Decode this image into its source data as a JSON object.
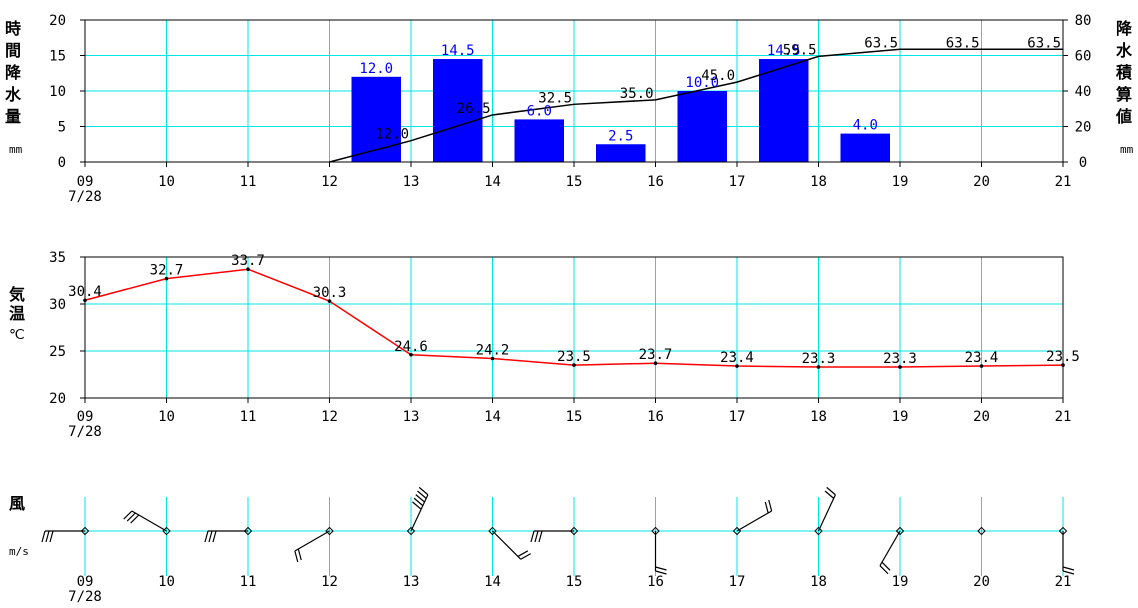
{
  "chart_data": [
    {
      "type": "bar",
      "ylabel": "時間降水量",
      "ylabel_unit": "mm",
      "y2label": "降水積算値",
      "y2label_unit": "mm",
      "ylim": [
        0,
        20
      ],
      "y2lim": [
        0,
        80
      ],
      "yticks": [
        "0",
        "5",
        "10",
        "15",
        "20"
      ],
      "y2ticks": [
        "0",
        "20",
        "40",
        "60",
        "80"
      ],
      "x_labels": [
        "09",
        "10",
        "11",
        "12",
        "13",
        "14",
        "15",
        "16",
        "17",
        "18",
        "19",
        "20",
        "21"
      ],
      "date_label": "7/28",
      "grid": true,
      "bar_color": "#0000ff",
      "bars": [
        {
          "x": 13,
          "value": 12.0,
          "label": "12.0"
        },
        {
          "x": 14,
          "value": 14.5,
          "label": "14.5"
        },
        {
          "x": 15,
          "value": 6.0,
          "label": "6.0"
        },
        {
          "x": 16,
          "value": 2.5,
          "label": "2.5"
        },
        {
          "x": 17,
          "value": 10.0,
          "label": "10.0"
        },
        {
          "x": 18,
          "value": 14.5,
          "label": "14.5"
        },
        {
          "x": 19,
          "value": 4.0,
          "label": "4.0"
        }
      ],
      "cumulative_color": "#000000",
      "cumulative": [
        {
          "x": 12,
          "value": 0,
          "label": ""
        },
        {
          "x": 13,
          "value": 12.0,
          "label": "12.0"
        },
        {
          "x": 14,
          "value": 26.5,
          "label": "26.5"
        },
        {
          "x": 15,
          "value": 32.5,
          "label": "32.5"
        },
        {
          "x": 16,
          "value": 35.0,
          "label": "35.0"
        },
        {
          "x": 17,
          "value": 45.0,
          "label": "45.0"
        },
        {
          "x": 18,
          "value": 59.5,
          "label": "59.5"
        },
        {
          "x": 19,
          "value": 63.5,
          "label": "63.5"
        },
        {
          "x": 20,
          "value": 63.5,
          "label": "63.5"
        },
        {
          "x": 21,
          "value": 63.5,
          "label": "63.5"
        }
      ]
    },
    {
      "type": "line",
      "ylabel": "気温",
      "ylabel_unit": "℃",
      "ylim": [
        20,
        35
      ],
      "yticks": [
        "20",
        "25",
        "30",
        "35"
      ],
      "x_labels": [
        "09",
        "10",
        "11",
        "12",
        "13",
        "14",
        "15",
        "16",
        "17",
        "18",
        "19",
        "20",
        "21"
      ],
      "date_label": "7/28",
      "grid": true,
      "line_color": "#ff0000",
      "points": [
        {
          "x": 9,
          "value": 30.4,
          "label": "30.4"
        },
        {
          "x": 10,
          "value": 32.7,
          "label": "32.7"
        },
        {
          "x": 11,
          "value": 33.7,
          "label": "33.7"
        },
        {
          "x": 12,
          "value": 30.3,
          "label": "30.3"
        },
        {
          "x": 13,
          "value": 24.6,
          "label": "24.6"
        },
        {
          "x": 14,
          "value": 24.2,
          "label": "24.2"
        },
        {
          "x": 15,
          "value": 23.5,
          "label": "23.5"
        },
        {
          "x": 16,
          "value": 23.7,
          "label": "23.7"
        },
        {
          "x": 17,
          "value": 23.4,
          "label": "23.4"
        },
        {
          "x": 18,
          "value": 23.3,
          "label": "23.3"
        },
        {
          "x": 19,
          "value": 23.3,
          "label": "23.3"
        },
        {
          "x": 20,
          "value": 23.4,
          "label": "23.4"
        },
        {
          "x": 21,
          "value": 23.5,
          "label": "23.5"
        }
      ]
    },
    {
      "type": "wind_barbs",
      "ylabel": "風",
      "ylabel_unit": "m/s",
      "x_labels": [
        "09",
        "10",
        "11",
        "12",
        "13",
        "14",
        "15",
        "16",
        "17",
        "18",
        "19",
        "20",
        "21"
      ],
      "date_label": "7/28",
      "barbs": [
        {
          "x": 9,
          "from_deg": 270,
          "speed_ms": 5
        },
        {
          "x": 10,
          "from_deg": 300,
          "speed_ms": 6
        },
        {
          "x": 11,
          "from_deg": 270,
          "speed_ms": 6
        },
        {
          "x": 12,
          "from_deg": 240,
          "speed_ms": 3
        },
        {
          "x": 13,
          "from_deg": 25,
          "speed_ms": 10
        },
        {
          "x": 14,
          "from_deg": 135,
          "speed_ms": 3
        },
        {
          "x": 15,
          "from_deg": 270,
          "speed_ms": 6
        },
        {
          "x": 16,
          "from_deg": 180,
          "speed_ms": 3
        },
        {
          "x": 17,
          "from_deg": 60,
          "speed_ms": 3
        },
        {
          "x": 18,
          "from_deg": 25,
          "speed_ms": 4
        },
        {
          "x": 19,
          "from_deg": 210,
          "speed_ms": 4
        },
        {
          "x": 20,
          "from_deg": null,
          "speed_ms": 0
        },
        {
          "x": 21,
          "from_deg": 180,
          "speed_ms": 3
        }
      ]
    }
  ]
}
